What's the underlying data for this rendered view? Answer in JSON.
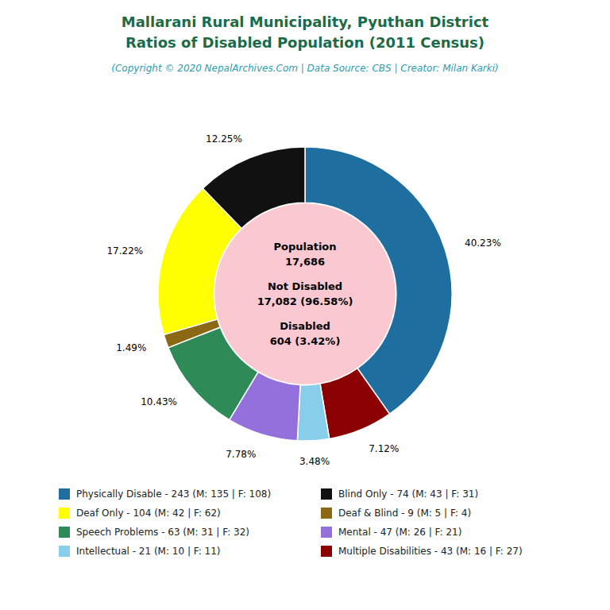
{
  "chart_data": {
    "type": "pie",
    "title": [
      "Mallarani Rural Municipality, Pyuthan District",
      "Ratios of Disabled Population (2011 Census)"
    ],
    "subtitle": "(Copyright © 2020 NepalArchives.Com | Data Source: CBS | Creator: Milan Karki)",
    "annotations": [
      "Population",
      "17,686",
      "Not Disabled",
      "17,082 (96.58%)",
      "Disabled",
      "604 (3.42%)"
    ],
    "categories": [
      "Physically Disable - 243 (M: 135 | F: 108)",
      "Multiple Disabilities - 43 (M: 16 | F: 27)",
      "Intellectual - 21 (M: 10 | F: 11)",
      "Mental - 47 (M: 26 | F: 21)",
      "Speech Problems - 63 (M: 31 | F: 32)",
      "Deaf & Blind - 9 (M: 5 | F: 4)",
      "Deaf Only - 104 (M: 42 | F: 62)",
      "Blind Only - 74 (M: 43 | F: 31)"
    ],
    "values": [
      40.23,
      7.12,
      3.48,
      7.78,
      10.43,
      1.49,
      17.22,
      12.25
    ],
    "value_labels": [
      "40.23%",
      "7.12%",
      "3.48%",
      "7.78%",
      "10.43%",
      "1.49%",
      "17.22%",
      "12.25%"
    ],
    "colors": [
      "#1e6fa0",
      "#8b0000",
      "#87ceeb",
      "#9370db",
      "#2e8b57",
      "#8b6914",
      "#ffff00",
      "#111111"
    ],
    "data_labels": true,
    "legend": "bottom",
    "legend_columns": [
      [
        "Physically Disable - 243 (M: 135 | F: 108)",
        "Deaf Only - 104 (M: 42 | F: 62)",
        "Speech Problems - 63 (M: 31 | F: 32)",
        "Intellectual - 21 (M: 10 | F: 11)"
      ],
      [
        "Blind Only - 74 (M: 43 | F: 31)",
        "Deaf & Blind - 9 (M: 5 | F: 4)",
        "Mental - 47 (M: 26 | F: 21)",
        "Multiple Disabilities - 43 (M: 16 | F: 27)"
      ]
    ]
  }
}
